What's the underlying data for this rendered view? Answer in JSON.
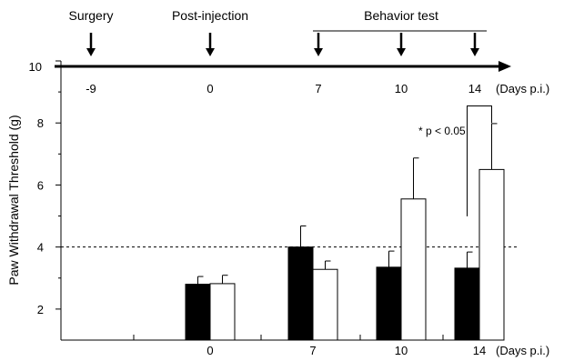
{
  "chart_data": {
    "type": "bar",
    "title": "",
    "ylabel": "Paw Withdrawal Threshold (g)",
    "xlabel": "(Days p.i.)",
    "ylim": [
      1,
      10
    ],
    "yticks": [
      2,
      4,
      6,
      8,
      10
    ],
    "categories": [
      "0",
      "7",
      "10",
      "14"
    ],
    "series": [
      {
        "name": "",
        "fill": "#000000",
        "values": [
          2.8,
          4.0,
          3.35,
          3.32
        ],
        "errors": [
          0.25,
          0.68,
          0.52,
          0.52
        ]
      },
      {
        "name": "",
        "fill": "#ffffff",
        "values": [
          2.82,
          3.28,
          5.55,
          6.5
        ],
        "errors": [
          0.27,
          0.27,
          1.32,
          1.48
        ]
      }
    ],
    "reference_line": {
      "y": 4,
      "style": "dotted"
    },
    "annotation": {
      "text": "* p < 0.05",
      "category": "14"
    },
    "timeline": {
      "events": [
        {
          "label": "Surgery",
          "day": "-9"
        },
        {
          "label": "Post-injection",
          "day": "0"
        },
        {
          "label": "",
          "day": "7"
        },
        {
          "label": "",
          "day": "10"
        },
        {
          "label": "",
          "day": "14"
        }
      ],
      "bracket_label": "Behavior test",
      "unit_label": "(Days p.i.)"
    }
  }
}
